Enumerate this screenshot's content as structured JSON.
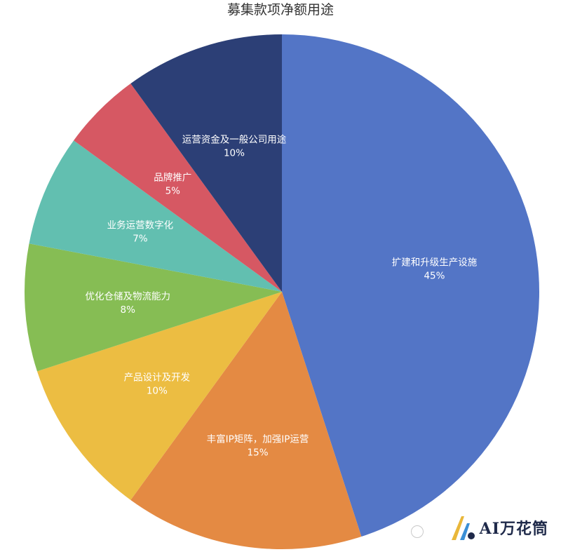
{
  "chart_data": {
    "type": "pie",
    "title": "募集款项净额用途",
    "slices": [
      {
        "label": "扩建和升级生产设施",
        "value": 45,
        "value_label": "45%",
        "color": "#5375c6"
      },
      {
        "label": "丰富IP矩阵，加强IP运营",
        "value": 15,
        "value_label": "15%",
        "color": "#e48a43"
      },
      {
        "label": "产品设计及开发",
        "value": 10,
        "value_label": "10%",
        "color": "#ecbd42"
      },
      {
        "label": "优化仓储及物流能力",
        "value": 8,
        "value_label": "8%",
        "color": "#86bd54"
      },
      {
        "label": "业务运营数字化",
        "value": 7,
        "value_label": "7%",
        "color": "#62bfb0"
      },
      {
        "label": "品牌推广",
        "value": 5,
        "value_label": "5%",
        "color": "#d65863"
      },
      {
        "label": "运营资金及一般公司用途",
        "value": 10,
        "value_label": "10%",
        "color": "#2c3f76"
      }
    ],
    "start": "top",
    "direction": "clockwise",
    "legend": "none"
  },
  "watermark": {
    "text": "AI万花筒",
    "logo_colors": [
      "#e9b73a",
      "#3a8fd6",
      "#1f2a4a"
    ]
  }
}
